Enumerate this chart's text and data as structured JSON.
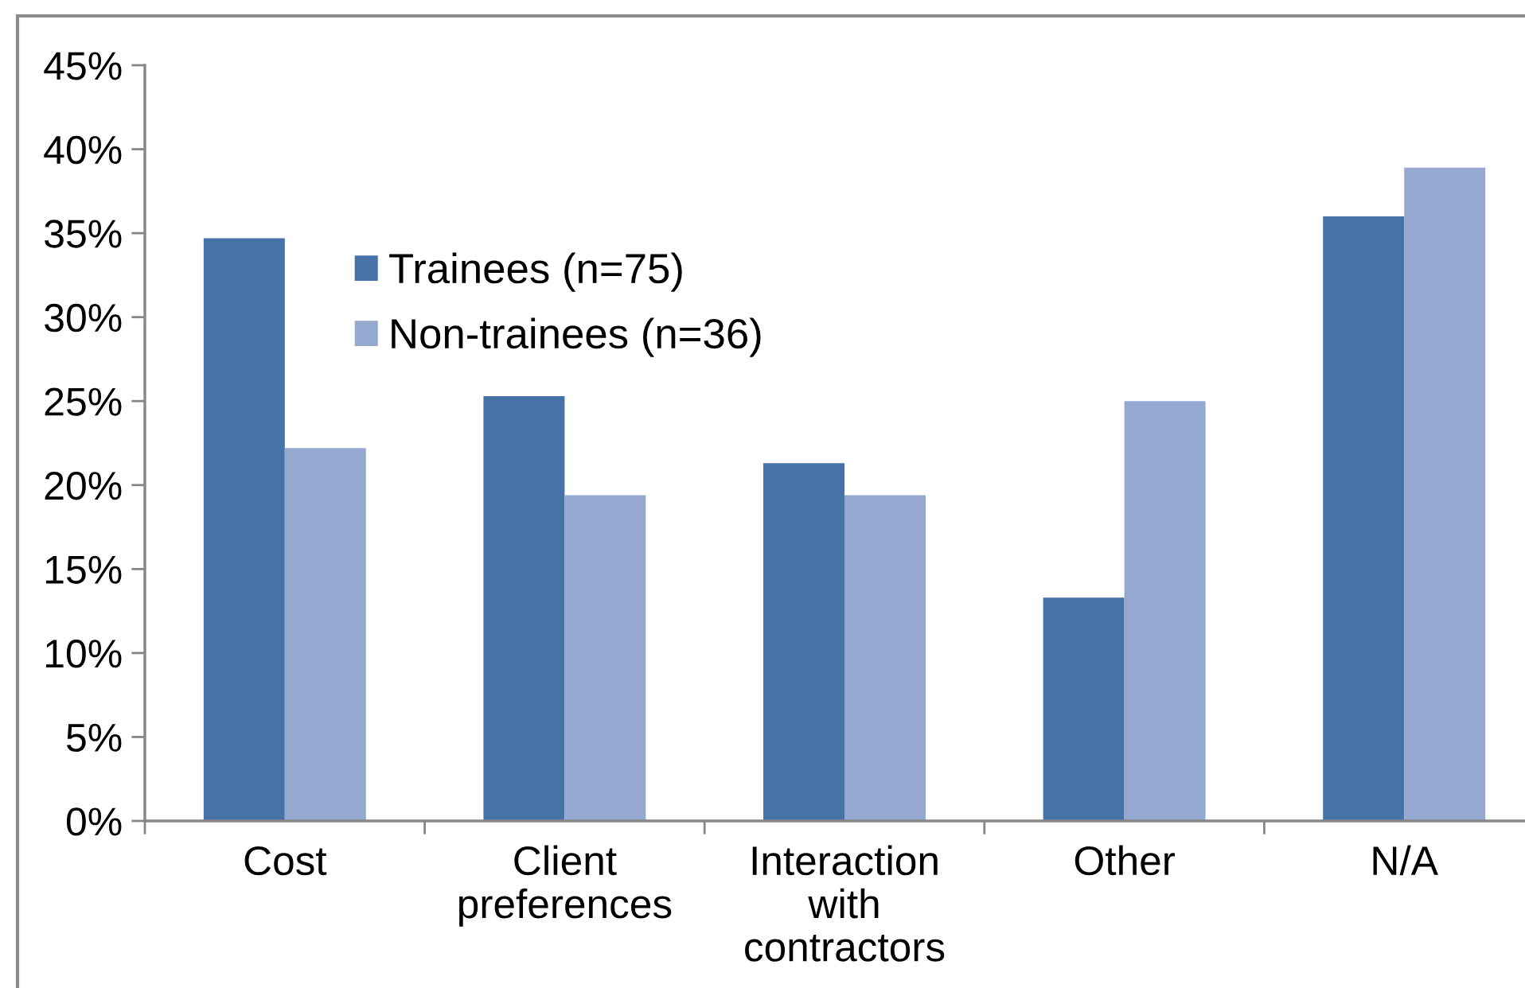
{
  "chart_data": {
    "type": "bar",
    "categories": [
      "Cost",
      "Client\npreferences",
      "Interaction\nwith\ncontractors",
      "Other",
      "N/A"
    ],
    "series": [
      {
        "name": "Trainees (n=75)",
        "color": "#4672a8",
        "values": [
          34.7,
          25.3,
          21.3,
          13.3,
          36.0
        ]
      },
      {
        "name": "Non-trainees (n=36)",
        "color": "#95a9d0",
        "values": [
          22.2,
          19.4,
          19.4,
          25.0,
          38.9
        ]
      }
    ],
    "ylim": [
      0,
      45
    ],
    "yticks": [
      {
        "value": 0,
        "label": "0%"
      },
      {
        "value": 5,
        "label": "5%"
      },
      {
        "value": 10,
        "label": "10%"
      },
      {
        "value": 15,
        "label": "15%"
      },
      {
        "value": 20,
        "label": "20%"
      },
      {
        "value": 25,
        "label": "25%"
      },
      {
        "value": 30,
        "label": "30%"
      },
      {
        "value": 35,
        "label": "35%"
      },
      {
        "value": 40,
        "label": "40%"
      },
      {
        "value": 45,
        "label": "45%"
      }
    ],
    "grid": false,
    "legend": "top left"
  }
}
